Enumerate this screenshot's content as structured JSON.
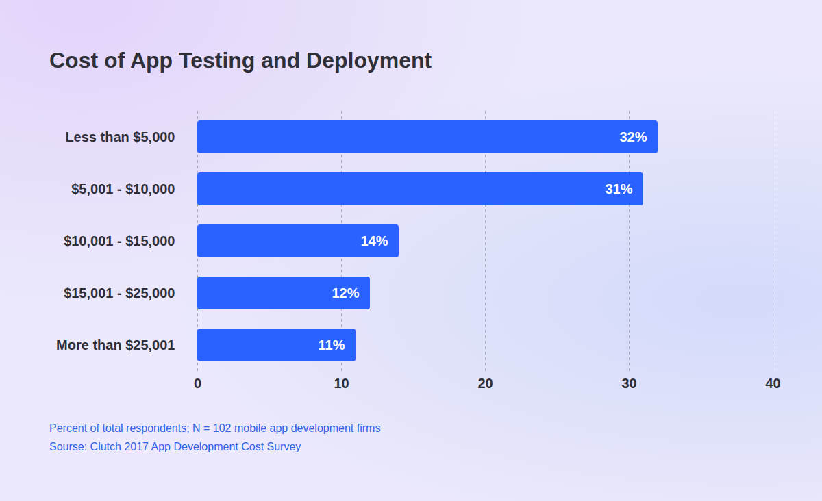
{
  "chart_data": {
    "type": "bar",
    "title": "Cost of App Testing and Deployment",
    "orientation": "horizontal",
    "categories": [
      "Less than $5,000",
      "$5,001 - $10,000",
      "$10,001 - $15,000",
      "$15,001 - $25,000",
      "More than $25,001"
    ],
    "values": [
      32,
      31,
      14,
      12,
      11
    ],
    "value_labels": [
      "32%",
      "31%",
      "14%",
      "12%",
      "11%"
    ],
    "color": "#2962ff",
    "xlim": [
      0,
      40
    ],
    "xticks": [
      0,
      10,
      20,
      30,
      40
    ],
    "grid": true,
    "data_labels": true,
    "caption": [
      "Percent of total respondents; N = 102 mobile app development firms",
      "Sourse: Clutch 2017 App Development Cost Survey"
    ]
  }
}
